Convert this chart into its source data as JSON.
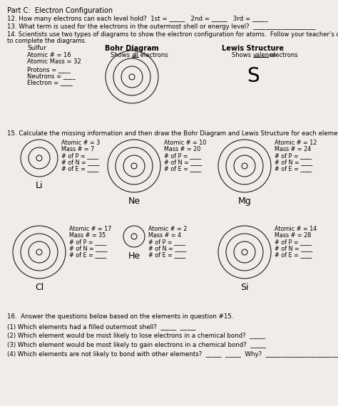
{
  "background_color": "#f0ede8",
  "title_part": "Part C:  Electron Configuration",
  "q12": "12. How many electrons can each level hold?  1st = _____   2nd = _____   3rd = _____",
  "q13": "13. What term is used for the electrons in the outermost shell or energy level?  ____________________",
  "q14_line1": "14. Scientists use two types of diagrams to show the electron configuration for atoms.  Follow your teacher’s directions",
  "q14_line2": "to complete the diagrams.",
  "sulfur_label": "Sulfur",
  "sulfur_atomic": "Atomic # = 16",
  "sulfur_mass": "Atomic Mass = 32",
  "sulfur_protons": "Protons = ____",
  "sulfur_neutrons": "Neutrons = ____",
  "sulfur_electron": "Electron = ____",
  "bohr_title": "Bohr Diagram",
  "bohr_sub1": "Shows ",
  "bohr_sub2": "all",
  "bohr_sub3": " electrons",
  "lewis_title": "Lewis Structure",
  "lewis_sub1": "Shows ",
  "lewis_sub2": "valence",
  "lewis_sub3": " electrons",
  "lewis_symbol": "S",
  "q15": "15. Calculate the missing information and then draw the Bohr Diagram and Lewis Structure for each element.",
  "q16_header": "16.  Answer the questions below based on the elements in question #15.",
  "q16_1": "(1) Which elements had a filled outermost shell?  _____  _____",
  "q16_2": "(2) Which element would be most likely to lose electrons in a chemical bond?  _____",
  "q16_3": "(3) Which element would be most likely to gain electrons in a chemical bond?  _____",
  "q16_4": "(4) Which elements are not likely to bond with other elements?  _____  _____  Why?  ______________________________",
  "elements_row1": [
    {
      "name": "Li",
      "atomic": "Atomic # = 3",
      "mass": "Mass # = 7",
      "p": "# of P = ____",
      "n": "# of N = ____",
      "e": "# of E = ____",
      "rings": 2
    },
    {
      "name": "Ne",
      "atomic": "Atomic # = 10",
      "mass": "Mass # = 20",
      "p": "# of P = ____",
      "n": "# of N = ____",
      "e": "# of E = ____",
      "rings": 3
    },
    {
      "name": "Mg",
      "atomic": "Atomic # = 12",
      "mass": "Mass # = 24",
      "p": "# of P = ____",
      "n": "# of N = ____",
      "e": "# of E = ____",
      "rings": 3
    }
  ],
  "elements_row2": [
    {
      "name": "Cl",
      "atomic": "Atomic # = 17",
      "mass": "Mass # = 35",
      "p": "# of P = ____",
      "n": "# of N = ____",
      "e": "# of E = ____",
      "rings": 3
    },
    {
      "name": "He",
      "atomic": "Atomic # = 2",
      "mass": "Mass # = 4",
      "p": "# of P = ____",
      "n": "# of N = ____",
      "e": "# of E = ____",
      "rings": 1
    },
    {
      "name": "Si",
      "atomic": "Atomic # = 14",
      "mass": "Mass # = 28",
      "p": "# of P = ____",
      "n": "# of N = ____",
      "e": "# of E = ____",
      "rings": 3
    }
  ]
}
